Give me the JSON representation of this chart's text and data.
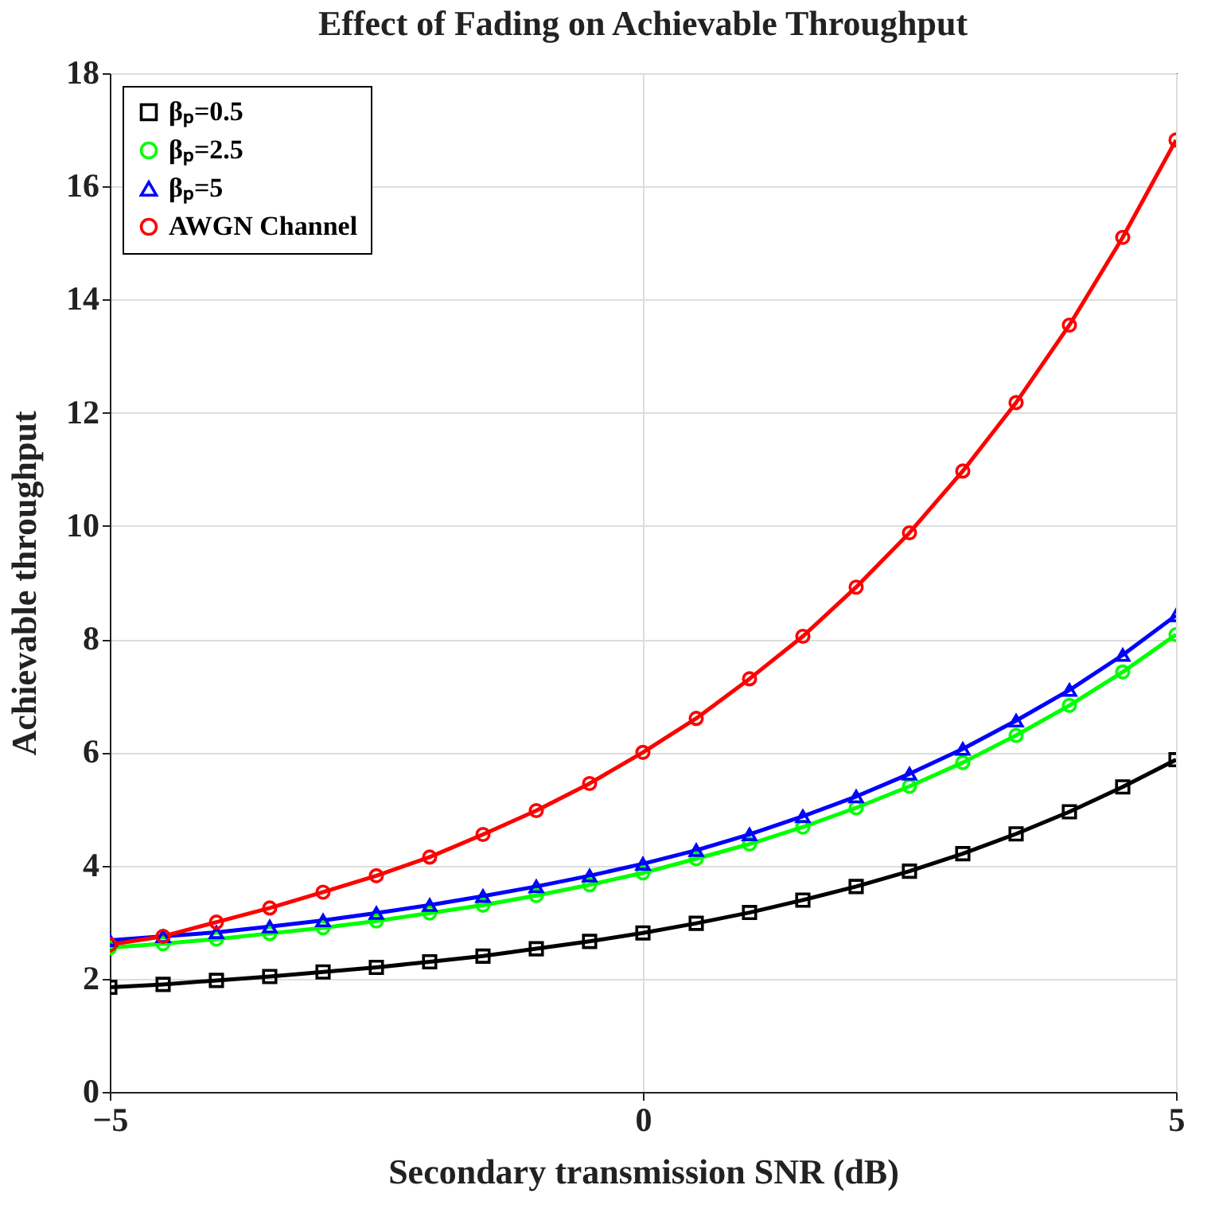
{
  "chart_data": {
    "type": "line",
    "title": "Effect of Fading on Achievable Throughput",
    "xlabel": "Secondary transmission SNR (dB)",
    "ylabel": "Achievable throughput",
    "x": [
      -5,
      -4.5,
      -4,
      -3.5,
      -3,
      -2.5,
      -2,
      -1.5,
      -1,
      -0.5,
      0,
      0.5,
      1,
      1.5,
      2,
      2.5,
      3,
      3.5,
      4,
      4.5,
      5
    ],
    "series": [
      {
        "name": "βₚ=0.5",
        "color": "#000000",
        "marker": "square",
        "values": [
          1.85,
          1.9,
          1.97,
          2.04,
          2.12,
          2.2,
          2.3,
          2.4,
          2.53,
          2.66,
          2.81,
          2.98,
          3.17,
          3.39,
          3.63,
          3.9,
          4.21,
          4.56,
          4.95,
          5.39,
          5.87
        ]
      },
      {
        "name": "βₚ=2.5",
        "color": "#00ff00",
        "marker": "circle",
        "values": [
          2.55,
          2.62,
          2.7,
          2.8,
          2.9,
          3.02,
          3.16,
          3.3,
          3.47,
          3.66,
          3.87,
          4.12,
          4.38,
          4.68,
          5.02,
          5.4,
          5.82,
          6.3,
          6.83,
          7.42,
          8.08
        ]
      },
      {
        "name": "βₚ=5",
        "color": "#0000ff",
        "marker": "triangle",
        "values": [
          2.68,
          2.75,
          2.82,
          2.92,
          3.03,
          3.16,
          3.3,
          3.46,
          3.63,
          3.82,
          4.03,
          4.27,
          4.55,
          4.87,
          5.22,
          5.62,
          6.06,
          6.56,
          7.1,
          7.72,
          8.42
        ]
      },
      {
        "name": "AWGN Channel",
        "color": "#ff0000",
        "marker": "circle",
        "values": [
          2.6,
          2.75,
          3.0,
          3.25,
          3.53,
          3.82,
          4.15,
          4.55,
          4.97,
          5.45,
          6.0,
          6.6,
          7.3,
          8.05,
          8.92,
          9.88,
          10.97,
          12.18,
          13.55,
          15.1,
          16.82
        ]
      }
    ],
    "xlim": [
      -5,
      5
    ],
    "xticks": [
      -5,
      0,
      5
    ],
    "ylim": [
      0,
      18
    ],
    "yticks": [
      0,
      2,
      4,
      6,
      8,
      10,
      12,
      14,
      16,
      18
    ],
    "grid": true,
    "legend": "top left",
    "line_style": "solid"
  }
}
